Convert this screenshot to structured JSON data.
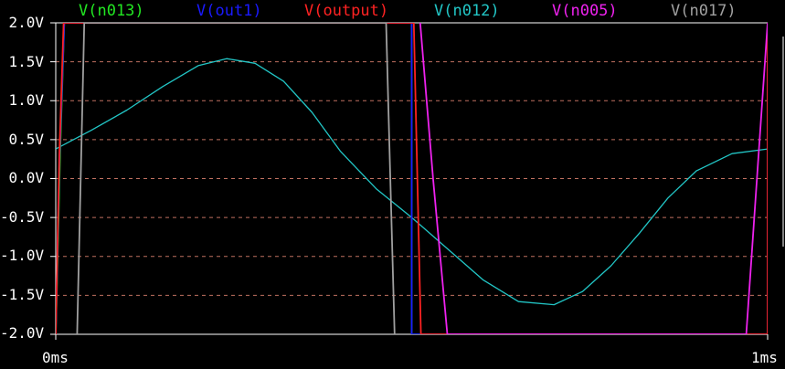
{
  "legend": [
    {
      "label": "V(n013)",
      "color": "#22e622"
    },
    {
      "label": "V(out1)",
      "color": "#1a1aff"
    },
    {
      "label": "V(output)",
      "color": "#ff2222"
    },
    {
      "label": "V(n012)",
      "color": "#22c6c6"
    },
    {
      "label": "V(n005)",
      "color": "#ee22ee"
    },
    {
      "label": "V(n017)",
      "color": "#a0a0a0"
    }
  ],
  "chart_data": {
    "type": "line",
    "xlabel": "",
    "ylabel": "",
    "xlim_ms": [
      0,
      1
    ],
    "ylim": [
      -2.0,
      2.0
    ],
    "y_ticks": [
      "2.0V",
      "1.5V",
      "1.0V",
      "0.5V",
      "0.0V",
      "-0.5V",
      "-1.0V",
      "-1.5V",
      "-2.0V"
    ],
    "x_ticks": [
      "0ms",
      "1ms"
    ],
    "grid": "horizontal dashed",
    "grid_color": "#c07060",
    "axis_color": "#ffffff",
    "series": [
      {
        "name": "V(n012)",
        "color": "#22c6c6",
        "x": [
          0,
          0.05,
          0.1,
          0.15,
          0.2,
          0.24,
          0.28,
          0.32,
          0.36,
          0.4,
          0.45,
          0.5,
          0.55,
          0.6,
          0.65,
          0.7,
          0.74,
          0.78,
          0.82,
          0.86,
          0.9,
          0.95,
          1.0
        ],
        "y": [
          0.38,
          0.62,
          0.88,
          1.18,
          1.45,
          1.54,
          1.48,
          1.25,
          0.85,
          0.35,
          -0.13,
          -0.5,
          -0.9,
          -1.3,
          -1.58,
          -1.62,
          -1.45,
          -1.12,
          -0.7,
          -0.25,
          0.1,
          0.32,
          0.38
        ]
      },
      {
        "name": "V(n013)",
        "color": "#22e622",
        "x": [
          0.0,
          0.006,
          0.012,
          0.5,
          0.5,
          0.5,
          1.0,
          1.0,
          1.0
        ],
        "y": [
          -2.0,
          0.3,
          2.0,
          2.0,
          0.0,
          -2.0,
          -2.0,
          0.2,
          2.0
        ]
      },
      {
        "name": "V(out1)",
        "color": "#1a1aff",
        "x": [
          0.0,
          0.005,
          0.012,
          0.5,
          0.5,
          0.5,
          1.0,
          1.0,
          1.0
        ],
        "y": [
          -2.0,
          0.2,
          2.0,
          2.0,
          0.0,
          -2.0,
          -2.0,
          0.2,
          2.0
        ]
      },
      {
        "name": "V(output)",
        "color": "#ff2222",
        "x": [
          0.0,
          0.005,
          0.011,
          0.503,
          0.508,
          0.513,
          1.0,
          1.0,
          1.0
        ],
        "y": [
          -2.0,
          0.3,
          2.0,
          2.0,
          0.0,
          -2.0,
          -2.0,
          0.2,
          2.0
        ]
      },
      {
        "name": "V(n005)",
        "color": "#ee22ee",
        "x": [
          0.512,
          0.53,
          0.55,
          0.97,
          0.985,
          1.0
        ],
        "y": [
          2.0,
          0.0,
          -2.0,
          -2.0,
          0.0,
          2.0
        ]
      },
      {
        "name": "V(n017)",
        "color": "#a0a0a0",
        "x": [
          0.03,
          0.035,
          0.04,
          0.464,
          0.47,
          0.476
        ],
        "y": [
          -2.0,
          0.0,
          2.0,
          2.0,
          0.0,
          -2.0
        ]
      }
    ]
  }
}
